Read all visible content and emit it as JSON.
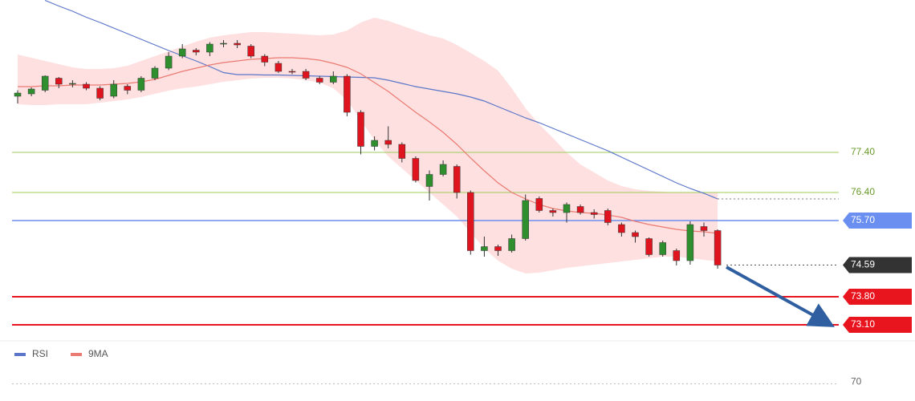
{
  "chart_data": {
    "type": "candlestick",
    "ylim": [
      72.8,
      81.2
    ],
    "up_color": "#2f8f2f",
    "down_color": "#e0141e",
    "open": [
      78.8,
      78.86,
      78.95,
      79.25,
      79.1,
      79.1,
      79.0,
      78.8,
      79.05,
      78.95,
      79.25,
      79.5,
      79.8,
      79.95,
      79.9,
      80.1,
      80.12,
      80.05,
      79.8,
      79.62,
      79.42,
      79.42,
      79.25,
      79.15,
      79.3,
      78.4,
      77.55,
      77.7,
      77.6,
      77.25,
      76.55,
      76.85,
      77.05,
      76.4,
      74.95,
      75.05,
      74.95,
      75.25,
      76.25,
      75.95,
      75.9,
      76.05,
      75.9,
      75.95,
      75.6,
      75.4,
      75.25,
      74.85,
      74.95,
      74.7,
      75.55,
      75.45
    ],
    "high": [
      78.95,
      79.02,
      79.32,
      79.28,
      79.2,
      79.15,
      79.05,
      79.2,
      79.1,
      79.3,
      79.55,
      79.9,
      80.1,
      80.0,
      80.15,
      80.2,
      80.2,
      80.1,
      79.85,
      79.68,
      79.48,
      79.48,
      79.3,
      79.42,
      79.35,
      78.45,
      77.8,
      78.05,
      77.65,
      77.3,
      76.95,
      77.2,
      77.1,
      76.45,
      75.3,
      75.1,
      75.35,
      76.35,
      76.3,
      76.0,
      76.15,
      76.1,
      75.98,
      76.0,
      75.65,
      75.45,
      75.28,
      75.2,
      75.0,
      75.68,
      75.65,
      75.48
    ],
    "low": [
      78.62,
      78.8,
      78.9,
      79.0,
      79.02,
      78.95,
      78.7,
      78.75,
      78.85,
      78.9,
      79.2,
      79.45,
      79.75,
      79.82,
      79.8,
      80.02,
      80.0,
      79.75,
      79.55,
      79.38,
      79.35,
      79.2,
      79.1,
      79.1,
      78.3,
      77.35,
      77.45,
      77.5,
      77.15,
      76.65,
      76.2,
      76.8,
      76.25,
      74.85,
      74.8,
      74.82,
      74.9,
      75.2,
      75.9,
      75.8,
      75.65,
      75.85,
      75.75,
      75.58,
      75.3,
      75.15,
      74.8,
      74.8,
      74.58,
      74.6,
      75.3,
      74.5
    ],
    "close": [
      78.88,
      78.98,
      79.3,
      79.1,
      79.12,
      79.0,
      78.75,
      79.1,
      78.95,
      79.25,
      79.5,
      79.8,
      79.98,
      79.9,
      80.1,
      80.12,
      80.08,
      79.8,
      79.65,
      79.42,
      79.4,
      79.25,
      79.15,
      79.3,
      78.4,
      77.55,
      77.7,
      77.6,
      77.25,
      76.7,
      76.85,
      77.1,
      76.4,
      74.95,
      75.05,
      74.95,
      75.25,
      76.2,
      75.95,
      75.9,
      76.1,
      75.9,
      75.85,
      75.65,
      75.4,
      75.3,
      74.85,
      75.15,
      74.7,
      75.6,
      75.45,
      74.59
    ],
    "band": {
      "color": "#fdd5d5",
      "upper": [
        79.84,
        79.76,
        79.68,
        79.6,
        79.52,
        79.48,
        79.48,
        79.5,
        79.56,
        79.68,
        79.8,
        79.92,
        80.04,
        80.16,
        80.26,
        80.32,
        80.36,
        80.4,
        80.4,
        80.38,
        80.36,
        80.34,
        80.32,
        80.34,
        80.44,
        80.64,
        80.76,
        80.68,
        80.56,
        80.44,
        80.32,
        80.24,
        80.08,
        79.88,
        79.68,
        79.44,
        79.0,
        78.5,
        78.1,
        77.76,
        77.4,
        77.1,
        76.9,
        76.7,
        76.56,
        76.48,
        76.44,
        76.42,
        76.4,
        76.4,
        76.4,
        76.4
      ],
      "lower": [
        78.6,
        78.58,
        78.58,
        78.6,
        78.6,
        78.6,
        78.64,
        78.68,
        78.72,
        78.78,
        78.86,
        78.94,
        79.0,
        79.04,
        79.1,
        79.16,
        79.2,
        79.24,
        79.26,
        79.26,
        79.24,
        79.2,
        79.14,
        79.0,
        78.7,
        78.2,
        77.7,
        77.3,
        77.0,
        76.7,
        76.4,
        76.1,
        75.8,
        75.4,
        75.0,
        74.7,
        74.5,
        74.38,
        74.4,
        74.46,
        74.52,
        74.56,
        74.6,
        74.64,
        74.68,
        74.72,
        74.76,
        74.8,
        74.8,
        74.76,
        74.72,
        74.68
      ]
    },
    "series": [
      {
        "name": "RSI",
        "color": "#5b76c9",
        "values": [
          null,
          null,
          81.19,
          81.05,
          80.92,
          80.77,
          80.64,
          80.5,
          80.36,
          80.22,
          80.08,
          79.94,
          79.81,
          79.68,
          79.54,
          79.39,
          79.34,
          79.34,
          79.33,
          79.33,
          79.32,
          79.31,
          79.3,
          79.29,
          79.28,
          79.27,
          79.26,
          79.2,
          79.12,
          79.04,
          78.98,
          78.92,
          78.86,
          78.78,
          78.68,
          78.54,
          78.4,
          78.26,
          78.14,
          78.0,
          77.86,
          77.72,
          77.58,
          77.44,
          77.28,
          77.12,
          76.96,
          76.8,
          76.64,
          76.5,
          76.38,
          76.24
        ]
      },
      {
        "name": "9MA",
        "color": "#ea7a72",
        "values": [
          79.04,
          79.04,
          79.06,
          79.06,
          79.08,
          79.08,
          79.08,
          79.1,
          79.12,
          79.16,
          79.22,
          79.32,
          79.42,
          79.5,
          79.58,
          79.64,
          79.68,
          79.72,
          79.74,
          79.76,
          79.76,
          79.74,
          79.7,
          79.62,
          79.52,
          79.36,
          79.14,
          78.92,
          78.66,
          78.4,
          78.16,
          77.9,
          77.6,
          77.26,
          76.94,
          76.64,
          76.4,
          76.24,
          76.1,
          76.0,
          75.94,
          75.9,
          75.88,
          75.84,
          75.78,
          75.68,
          75.6,
          75.54,
          75.48,
          75.44,
          75.42,
          75.38
        ]
      }
    ],
    "levels": [
      {
        "value": 77.4,
        "label": "77.40",
        "color": "#9ccc5a",
        "text_color": "#6a9a2a",
        "boxed": false,
        "width": 1
      },
      {
        "value": 76.4,
        "label": "76.40",
        "color": "#9ccc5a",
        "text_color": "#6a9a2a",
        "boxed": false,
        "width": 1
      },
      {
        "value": 75.7,
        "label": "75.70",
        "color": "#6b8ff0",
        "text_color": "#ffffff",
        "boxed": true,
        "width": 1.5
      },
      {
        "value": 74.59,
        "label": "74.59",
        "color": "#333333",
        "text_color": "#ffffff",
        "boxed": true,
        "width": 1,
        "dotted": true
      },
      {
        "value": 73.8,
        "label": "73.80",
        "color": "#e8141e",
        "text_color": "#ffffff",
        "boxed": true,
        "width": 2
      },
      {
        "value": 73.1,
        "label": "73.10",
        "color": "#e8141e",
        "text_color": "#ffffff",
        "boxed": true,
        "width": 2
      }
    ],
    "lower_panel": {
      "ylim": [
        66,
        80
      ],
      "yticks": [
        70
      ]
    }
  }
}
